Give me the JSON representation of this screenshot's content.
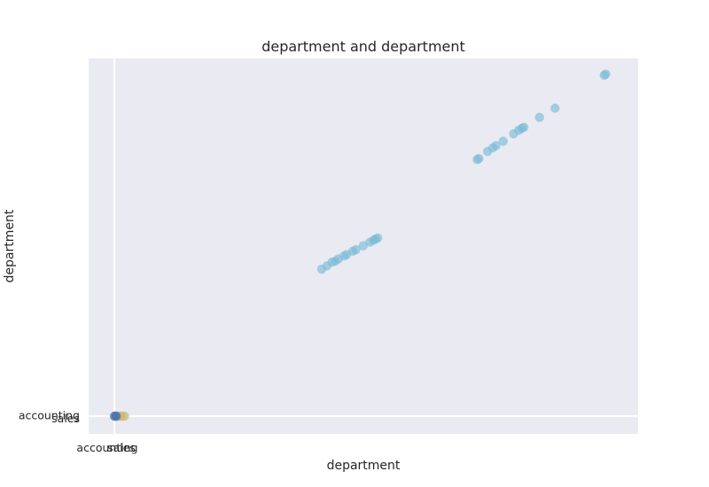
{
  "chart_data": {
    "type": "scatter",
    "title": "department and department",
    "xlabel": "department",
    "ylabel": "department",
    "grid": true,
    "x_tick_labels": [
      "accounting",
      "sales"
    ],
    "y_tick_labels": [
      "accounting",
      "sales"
    ],
    "colors": {
      "background": "#eaeaf2",
      "grid": "#ffffff",
      "points_primary": "#7bbcd5",
      "points_sales": "#ccb974",
      "points_accounting": "#4c72b0"
    },
    "series": [
      {
        "color_key": "points_sales",
        "points": [
          [
            0.5,
            0
          ],
          [
            0.9,
            0
          ],
          [
            1.2,
            0
          ],
          [
            1.6,
            0
          ],
          [
            2.0,
            0
          ]
        ]
      },
      {
        "color_key": "points_accounting",
        "points": [
          [
            0,
            0
          ],
          [
            0.2,
            0
          ],
          [
            0.4,
            0
          ]
        ]
      },
      {
        "color_key": "points_primary",
        "points": [
          [
            40.0,
            40.1
          ],
          [
            41.0,
            41.0
          ],
          [
            42.0,
            42.0
          ],
          [
            42.6,
            42.3
          ],
          [
            43.2,
            42.9
          ],
          [
            44.3,
            43.7
          ],
          [
            44.8,
            44.1
          ],
          [
            46.0,
            45.0
          ],
          [
            46.6,
            45.4
          ],
          [
            48.0,
            46.5
          ],
          [
            49.3,
            47.5
          ],
          [
            50.0,
            48.0
          ],
          [
            50.4,
            48.3
          ],
          [
            50.8,
            48.6
          ],
          [
            70.0,
            70.0
          ],
          [
            70.3,
            70.3
          ],
          [
            72.0,
            72.2
          ],
          [
            73.0,
            73.2
          ],
          [
            73.6,
            73.8
          ],
          [
            75.0,
            75.0
          ],
          [
            77.0,
            77.0
          ],
          [
            78.0,
            78.0
          ],
          [
            78.6,
            78.5
          ],
          [
            79.0,
            78.8
          ],
          [
            82.0,
            81.5
          ],
          [
            85.0,
            84.0
          ],
          [
            94.5,
            93.0
          ],
          [
            94.8,
            93.3
          ]
        ]
      }
    ]
  }
}
